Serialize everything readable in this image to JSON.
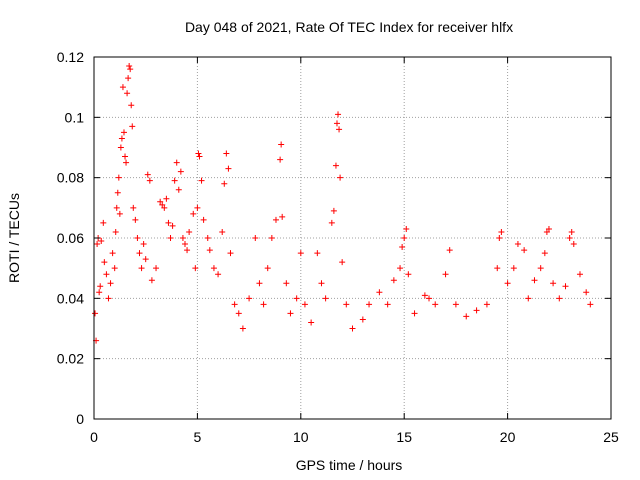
{
  "chart_data": {
    "type": "scatter",
    "title": "Day 048 of 2021, Rate Of TEC Index for receiver hlfx",
    "xlabel": "GPS time / hours",
    "ylabel": "ROTI / TECUs",
    "xlim": [
      0,
      25
    ],
    "ylim": [
      0,
      0.12
    ],
    "xticks": [
      "0",
      "5",
      "10",
      "15",
      "20",
      "25"
    ],
    "yticks": [
      "0",
      "0.02",
      "0.04",
      "0.06",
      "0.08",
      "0.1",
      "0.12"
    ],
    "grid": true,
    "marker": "+",
    "color": "#ff0000",
    "series": [
      {
        "points": [
          [
            0.05,
            0.035
          ],
          [
            0.1,
            0.026
          ],
          [
            0.15,
            0.058
          ],
          [
            0.2,
            0.06
          ],
          [
            0.25,
            0.042
          ],
          [
            0.3,
            0.044
          ],
          [
            0.35,
            0.059
          ],
          [
            0.45,
            0.065
          ],
          [
            0.5,
            0.052
          ],
          [
            0.6,
            0.048
          ],
          [
            0.7,
            0.04
          ],
          [
            0.8,
            0.045
          ],
          [
            0.9,
            0.055
          ],
          [
            1.0,
            0.05
          ],
          [
            1.05,
            0.062
          ],
          [
            1.1,
            0.07
          ],
          [
            1.15,
            0.075
          ],
          [
            1.2,
            0.08
          ],
          [
            1.25,
            0.068
          ],
          [
            1.3,
            0.09
          ],
          [
            1.35,
            0.093
          ],
          [
            1.4,
            0.11
          ],
          [
            1.45,
            0.095
          ],
          [
            1.5,
            0.087
          ],
          [
            1.55,
            0.085
          ],
          [
            1.6,
            0.108
          ],
          [
            1.65,
            0.113
          ],
          [
            1.7,
            0.117
          ],
          [
            1.75,
            0.116
          ],
          [
            1.8,
            0.104
          ],
          [
            1.85,
            0.097
          ],
          [
            1.9,
            0.07
          ],
          [
            2.0,
            0.066
          ],
          [
            2.1,
            0.06
          ],
          [
            2.2,
            0.055
          ],
          [
            2.3,
            0.05
          ],
          [
            2.4,
            0.058
          ],
          [
            2.5,
            0.053
          ],
          [
            2.6,
            0.081
          ],
          [
            2.7,
            0.079
          ],
          [
            2.8,
            0.046
          ],
          [
            3.0,
            0.05
          ],
          [
            3.2,
            0.072
          ],
          [
            3.3,
            0.071
          ],
          [
            3.4,
            0.07
          ],
          [
            3.5,
            0.073
          ],
          [
            3.6,
            0.065
          ],
          [
            3.7,
            0.06
          ],
          [
            3.8,
            0.064
          ],
          [
            3.9,
            0.079
          ],
          [
            4.0,
            0.085
          ],
          [
            4.1,
            0.076
          ],
          [
            4.2,
            0.082
          ],
          [
            4.3,
            0.06
          ],
          [
            4.4,
            0.058
          ],
          [
            4.5,
            0.056
          ],
          [
            4.6,
            0.062
          ],
          [
            4.8,
            0.068
          ],
          [
            4.9,
            0.05
          ],
          [
            5.0,
            0.07
          ],
          [
            5.05,
            0.088
          ],
          [
            5.1,
            0.087
          ],
          [
            5.2,
            0.079
          ],
          [
            5.3,
            0.066
          ],
          [
            5.5,
            0.06
          ],
          [
            5.6,
            0.056
          ],
          [
            5.8,
            0.05
          ],
          [
            6.0,
            0.048
          ],
          [
            6.2,
            0.062
          ],
          [
            6.3,
            0.078
          ],
          [
            6.4,
            0.088
          ],
          [
            6.5,
            0.083
          ],
          [
            6.6,
            0.055
          ],
          [
            6.8,
            0.038
          ],
          [
            7.0,
            0.035
          ],
          [
            7.2,
            0.03
          ],
          [
            7.5,
            0.04
          ],
          [
            7.8,
            0.06
          ],
          [
            8.0,
            0.045
          ],
          [
            8.2,
            0.038
          ],
          [
            8.4,
            0.05
          ],
          [
            8.6,
            0.06
          ],
          [
            8.8,
            0.066
          ],
          [
            9.0,
            0.086
          ],
          [
            9.05,
            0.091
          ],
          [
            9.1,
            0.067
          ],
          [
            9.3,
            0.045
          ],
          [
            9.5,
            0.035
          ],
          [
            9.8,
            0.04
          ],
          [
            10.0,
            0.055
          ],
          [
            10.2,
            0.038
          ],
          [
            10.5,
            0.032
          ],
          [
            10.8,
            0.055
          ],
          [
            11.0,
            0.045
          ],
          [
            11.2,
            0.04
          ],
          [
            11.5,
            0.065
          ],
          [
            11.6,
            0.069
          ],
          [
            11.7,
            0.084
          ],
          [
            11.75,
            0.098
          ],
          [
            11.8,
            0.101
          ],
          [
            11.85,
            0.096
          ],
          [
            11.9,
            0.08
          ],
          [
            12.0,
            0.052
          ],
          [
            12.2,
            0.038
          ],
          [
            12.5,
            0.03
          ],
          [
            13.0,
            0.033
          ],
          [
            13.3,
            0.038
          ],
          [
            13.8,
            0.042
          ],
          [
            14.2,
            0.038
          ],
          [
            14.5,
            0.046
          ],
          [
            14.8,
            0.05
          ],
          [
            14.9,
            0.057
          ],
          [
            15.0,
            0.06
          ],
          [
            15.1,
            0.063
          ],
          [
            15.2,
            0.048
          ],
          [
            15.5,
            0.035
          ],
          [
            16.0,
            0.041
          ],
          [
            16.2,
            0.04
          ],
          [
            16.5,
            0.038
          ],
          [
            17.0,
            0.048
          ],
          [
            17.2,
            0.056
          ],
          [
            17.5,
            0.038
          ],
          [
            18.0,
            0.034
          ],
          [
            18.5,
            0.036
          ],
          [
            19.0,
            0.038
          ],
          [
            19.5,
            0.05
          ],
          [
            19.6,
            0.06
          ],
          [
            19.7,
            0.062
          ],
          [
            20.0,
            0.045
          ],
          [
            20.3,
            0.05
          ],
          [
            20.5,
            0.058
          ],
          [
            20.8,
            0.056
          ],
          [
            21.0,
            0.04
          ],
          [
            21.3,
            0.046
          ],
          [
            21.6,
            0.05
          ],
          [
            21.8,
            0.055
          ],
          [
            21.9,
            0.062
          ],
          [
            22.0,
            0.063
          ],
          [
            22.2,
            0.045
          ],
          [
            22.5,
            0.04
          ],
          [
            22.8,
            0.044
          ],
          [
            23.0,
            0.06
          ],
          [
            23.1,
            0.062
          ],
          [
            23.2,
            0.058
          ],
          [
            23.5,
            0.048
          ],
          [
            23.8,
            0.042
          ],
          [
            24.0,
            0.038
          ]
        ]
      }
    ]
  }
}
